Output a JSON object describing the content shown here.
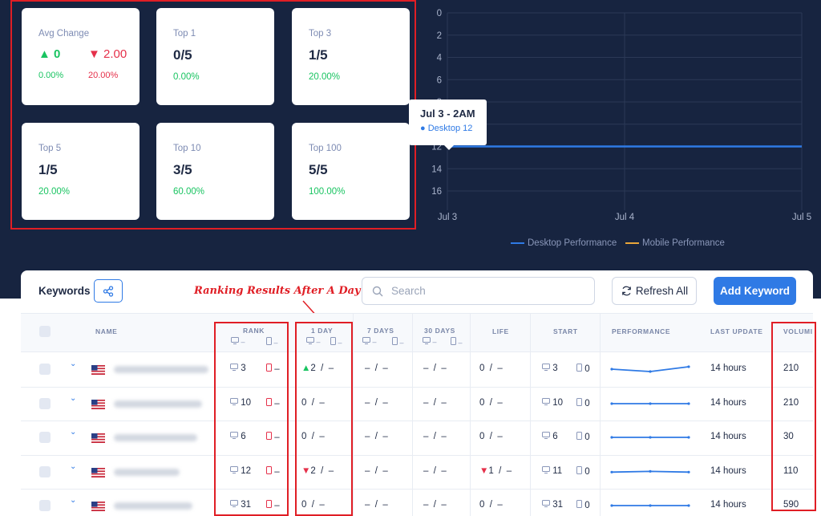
{
  "stats": {
    "avg_change": {
      "label": "Avg Change",
      "up_value": "0",
      "down_value": "2.00",
      "up_pct": "0.00%",
      "down_pct": "20.00%"
    },
    "top1": {
      "label": "Top 1",
      "value": "0/5",
      "pct": "0.00%"
    },
    "top3": {
      "label": "Top 3",
      "value": "1/5",
      "pct": "20.00%"
    },
    "top5": {
      "label": "Top 5",
      "value": "1/5",
      "pct": "20.00%"
    },
    "top10": {
      "label": "Top 10",
      "value": "3/5",
      "pct": "60.00%"
    },
    "top100": {
      "label": "Top 100",
      "value": "5/5",
      "pct": "100.00%"
    }
  },
  "chart_data": {
    "type": "line",
    "x_ticks": [
      "Jul 3",
      "Jul 4",
      "Jul 5"
    ],
    "y_ticks": [
      "0",
      "2",
      "4",
      "6",
      "8",
      "10",
      "12",
      "14",
      "16"
    ],
    "ylim": [
      0,
      16
    ],
    "y_inverted": true,
    "series": [
      {
        "name": "Desktop Performance",
        "color": "#2f7ae5",
        "x": [
          "Jul 3",
          "Jul 4",
          "Jul 5"
        ],
        "values": [
          12,
          12,
          12
        ]
      },
      {
        "name": "Mobile Performance",
        "color": "#e8a53a",
        "x": [],
        "values": []
      }
    ],
    "tooltip": {
      "title": "Jul 3 - 2AM",
      "text": "Desktop 12"
    },
    "legend_position": "bottom"
  },
  "toolbar": {
    "title": "Keywords",
    "search_placeholder": "Search",
    "refresh_label": "Refresh All",
    "add_label": "Add Keyword"
  },
  "annotation": "Ranking Results After A Day",
  "table": {
    "headers": {
      "name": "NAME",
      "rank": "RANK",
      "day1": "1 DAY",
      "day7": "7 DAYS",
      "day30": "30 DAYS",
      "life": "LIFE",
      "start": "START",
      "performance": "PERFORMANCE",
      "last_update": "LAST UPDATE",
      "volume": "VOLUMI"
    },
    "sub_dash": "–",
    "rows": [
      {
        "rank_d": "3",
        "rank_m": "–",
        "day1_d": "2",
        "day1_dir": "up",
        "day1_m": "–",
        "day7": "–  /  –",
        "day30": "–  /  –",
        "life_d": "0",
        "life_dir": "",
        "life_m": "–",
        "start_d": "3",
        "start_m": "0",
        "perf": [
          12,
          13,
          11
        ],
        "updated": "14 hours",
        "volume": "210"
      },
      {
        "rank_d": "10",
        "rank_m": "–",
        "day1_d": "0",
        "day1_dir": "",
        "day1_m": "–",
        "day7": "–  /  –",
        "day30": "–  /  –",
        "life_d": "0",
        "life_dir": "",
        "life_m": "–",
        "start_d": "10",
        "start_m": "0",
        "perf": [
          10,
          10,
          10
        ],
        "updated": "14 hours",
        "volume": "210"
      },
      {
        "rank_d": "6",
        "rank_m": "–",
        "day1_d": "0",
        "day1_dir": "",
        "day1_m": "–",
        "day7": "–  /  –",
        "day30": "–  /  –",
        "life_d": "0",
        "life_dir": "",
        "life_m": "–",
        "start_d": "6",
        "start_m": "0",
        "perf": [
          6,
          6,
          6
        ],
        "updated": "14 hours",
        "volume": "30"
      },
      {
        "rank_d": "12",
        "rank_m": "–",
        "day1_d": "2",
        "day1_dir": "down",
        "day1_m": "–",
        "day7": "–  /  –",
        "day30": "–  /  –",
        "life_d": "1",
        "life_dir": "down",
        "life_m": "–",
        "start_d": "11",
        "start_m": "0",
        "perf": [
          11,
          10.7,
          11
        ],
        "updated": "14 hours",
        "volume": "110"
      },
      {
        "rank_d": "31",
        "rank_m": "–",
        "day1_d": "0",
        "day1_dir": "",
        "day1_m": "–",
        "day7": "–  /  –",
        "day30": "–  /  –",
        "life_d": "0",
        "life_dir": "",
        "life_m": "–",
        "start_d": "31",
        "start_m": "0",
        "perf": [
          31,
          31,
          31
        ],
        "updated": "14 hours",
        "volume": "590"
      }
    ]
  },
  "colors": {
    "accent": "#2f7ae5",
    "up": "#19c461",
    "down": "#e5304a",
    "annotation": "#e01e25",
    "background_dark": "#172440"
  }
}
